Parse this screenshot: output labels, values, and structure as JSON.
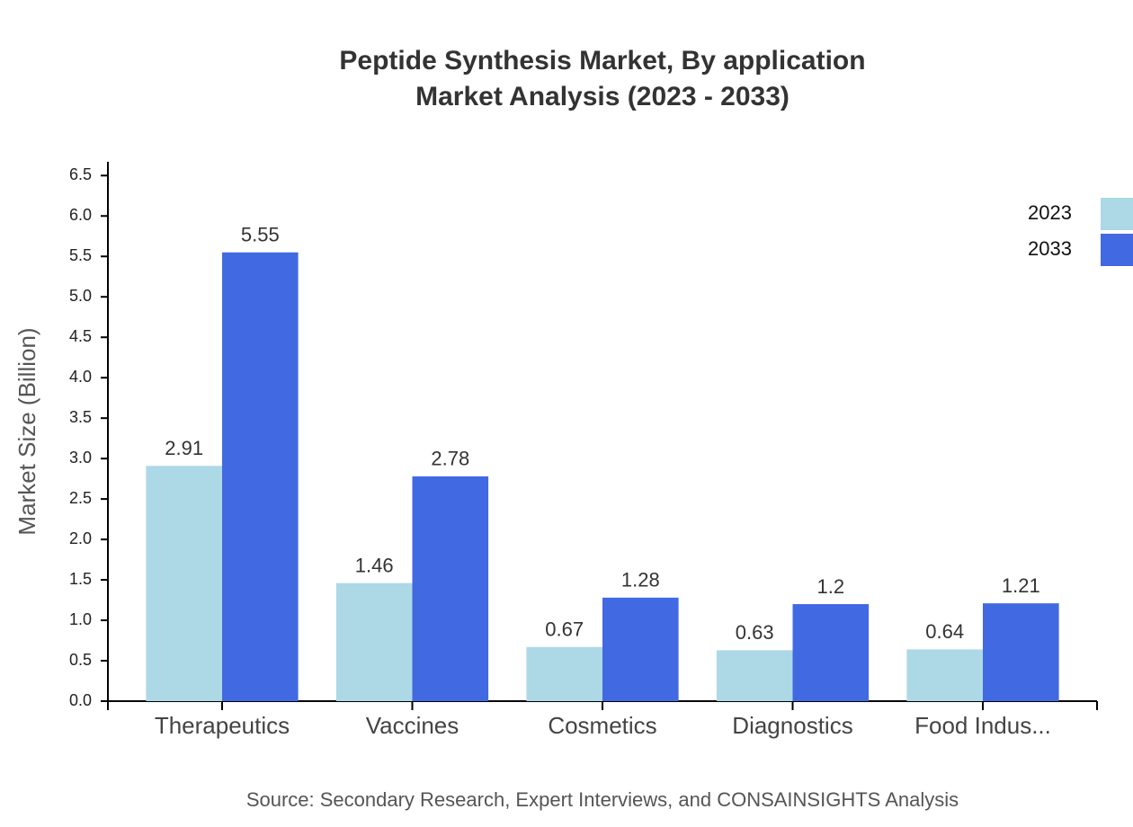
{
  "chart_data": {
    "type": "bar",
    "title": "Peptide Synthesis Market, By application",
    "subtitle": "Market Analysis (2023 - 2033)",
    "y_label": "Market Size (Billion)",
    "source": "Source: Secondary Research, Expert Interviews, and CONSAINSIGHTS Analysis",
    "categories": [
      "Therapeutics",
      "Vaccines",
      "Cosmetics",
      "Diagnostics",
      "Food Indus..."
    ],
    "series": [
      {
        "name": "2023",
        "color": "#add8e6",
        "values": [
          2.91,
          1.46,
          0.67,
          0.63,
          0.64
        ]
      },
      {
        "name": "2033",
        "color": "#4169e1",
        "values": [
          5.55,
          2.78,
          1.28,
          1.2,
          1.21
        ]
      }
    ],
    "ylim": [
      0,
      6.67
    ],
    "yticks": [
      {
        "value": 0,
        "label": "0.0"
      },
      0.5,
      {
        "value": 1,
        "label": "1.0"
      },
      1.5,
      {
        "value": 2,
        "label": "2.0"
      },
      2.5,
      {
        "value": 3,
        "label": "3.0"
      },
      3.5,
      {
        "value": 4,
        "label": "4.0"
      },
      4.5,
      {
        "value": 5,
        "label": "5.0"
      },
      5.5,
      {
        "value": 6,
        "label": "6.0"
      },
      6.5
    ],
    "legend": "top-right",
    "grid": false
  }
}
